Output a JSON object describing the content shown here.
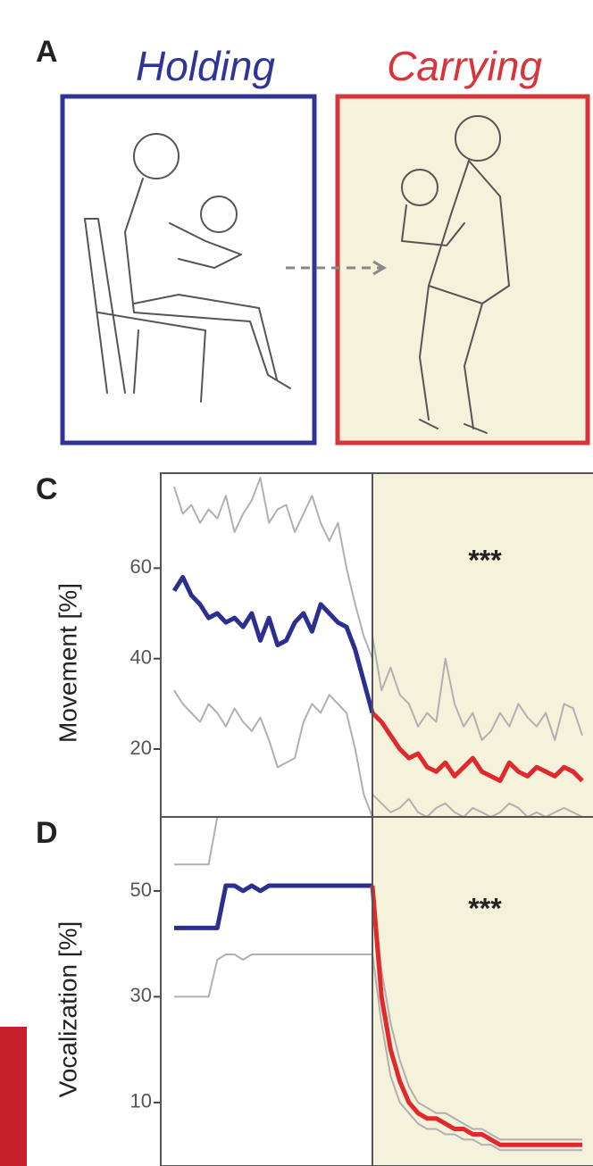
{
  "figure": {
    "label": "A",
    "titles": [
      {
        "text": "Holding",
        "color": "#2e3596"
      },
      {
        "text": "Carrying",
        "color": "#d8343a"
      }
    ]
  },
  "chart_data": [
    {
      "type": "line",
      "panel": "C",
      "ylabel": "Movement [%]",
      "annotation": "***",
      "shade": "#f5f2dc",
      "ylim": [
        5,
        81
      ],
      "yticks": [
        20,
        40,
        60
      ],
      "series": [
        {
          "color": "#b0b0b0",
          "values": [
            78,
            72,
            74,
            70,
            73,
            71,
            76,
            68,
            72,
            75,
            80,
            70,
            73,
            74,
            68,
            72,
            76,
            70,
            66,
            70,
            60,
            52,
            45,
            40,
            45,
            33,
            38,
            32,
            30,
            25,
            28,
            26,
            40,
            30,
            25,
            28,
            22,
            24,
            28,
            25,
            30,
            27,
            25,
            28,
            22,
            30,
            29,
            23
          ]
        },
        {
          "color": "#b0b0b0",
          "values": [
            33,
            30,
            28,
            26,
            30,
            28,
            25,
            29,
            26,
            24,
            27,
            22,
            16,
            17,
            18,
            26,
            30,
            28,
            32,
            30,
            28,
            20,
            10,
            5,
            10,
            8,
            6,
            7,
            9,
            6,
            5,
            7,
            8,
            6,
            5,
            7,
            6,
            5,
            6,
            8,
            7,
            5,
            6,
            5,
            6,
            7,
            6,
            5
          ]
        },
        {
          "color": "#2b2f8f",
          "values": [
            55,
            58,
            54,
            52,
            49,
            50,
            48,
            49,
            47,
            50,
            44,
            49,
            43,
            44,
            48,
            50,
            46,
            52,
            50,
            48,
            47,
            42,
            35,
            28,
            null,
            null,
            null,
            null,
            null,
            null,
            null,
            null,
            null,
            null,
            null,
            null,
            null,
            null,
            null,
            null,
            null,
            null,
            null,
            null,
            null,
            null,
            null,
            null
          ]
        },
        {
          "color": "#e0282d",
          "values": [
            null,
            null,
            null,
            null,
            null,
            null,
            null,
            null,
            null,
            null,
            null,
            null,
            null,
            null,
            null,
            null,
            null,
            null,
            null,
            null,
            null,
            null,
            null,
            null,
            28,
            26,
            23,
            20,
            18,
            19,
            16,
            15,
            17,
            14,
            16,
            18,
            15,
            14,
            13,
            17,
            15,
            14,
            16,
            15,
            14,
            16,
            15,
            13
          ]
        }
      ]
    },
    {
      "type": "line",
      "panel": "D",
      "ylabel": "Vocalization [%]",
      "annotation": "***",
      "shade": "#f5f2dc",
      "ylim": [
        -2,
        64
      ],
      "yticks": [
        10,
        30,
        50
      ],
      "series": [
        {
          "color": "#b0b0b0",
          "values": [
            55,
            55,
            55,
            55,
            55,
            64,
            64,
            64,
            64,
            64,
            64,
            64,
            64,
            64,
            64,
            64,
            64,
            64,
            64,
            64,
            64,
            64,
            64,
            64,
            51,
            35,
            25,
            18,
            13,
            10,
            9,
            8,
            8,
            7,
            6,
            5,
            5,
            4,
            3,
            3,
            3,
            3,
            3,
            3,
            3,
            3,
            3,
            3
          ]
        },
        {
          "color": "#b0b0b0",
          "values": [
            30,
            30,
            30,
            30,
            30,
            37,
            38,
            38,
            37,
            38,
            38,
            38,
            38,
            38,
            38,
            38,
            38,
            38,
            38,
            38,
            38,
            38,
            38,
            38,
            38,
            25,
            15,
            10,
            8,
            6,
            5,
            5,
            4,
            4,
            3,
            3,
            2,
            2,
            1,
            1,
            1,
            1,
            1,
            1,
            1,
            1,
            1,
            1
          ]
        },
        {
          "color": "#2b2f8f",
          "values": [
            43,
            43,
            43,
            43,
            43,
            43,
            51,
            51,
            50,
            51,
            50,
            51,
            51,
            51,
            51,
            51,
            51,
            51,
            51,
            51,
            51,
            51,
            51,
            51,
            null,
            null,
            null,
            null,
            null,
            null,
            null,
            null,
            null,
            null,
            null,
            null,
            null,
            null,
            null,
            null,
            null,
            null,
            null,
            null,
            null,
            null,
            null,
            null
          ]
        },
        {
          "color": "#e0282d",
          "values": [
            null,
            null,
            null,
            null,
            null,
            null,
            null,
            null,
            null,
            null,
            null,
            null,
            null,
            null,
            null,
            null,
            null,
            null,
            null,
            null,
            null,
            null,
            null,
            null,
            51,
            30,
            20,
            14,
            10,
            8,
            7,
            7,
            6,
            5,
            5,
            4,
            4,
            3,
            2,
            2,
            2,
            2,
            2,
            2,
            2,
            2,
            2,
            2
          ]
        }
      ]
    }
  ]
}
